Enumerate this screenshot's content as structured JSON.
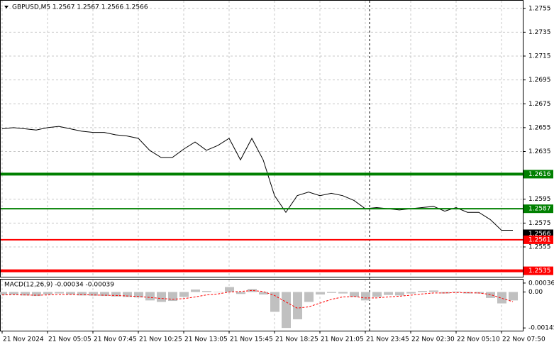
{
  "chart_data": [
    {
      "type": "line",
      "title": "GBPUSD,M5  1.2567 1.2567 1.2566 1.2566",
      "categories": [
        "21 Nov 2024",
        null,
        null,
        null,
        "21 Nov 05:05",
        null,
        null,
        null,
        "21 Nov 07:45",
        null,
        null,
        null,
        "21 Nov 10:25",
        null,
        null,
        null,
        "21 Nov 13:05",
        null,
        null,
        null,
        "21 Nov 15:45",
        null,
        null,
        null,
        "21 Nov 18:25",
        null,
        null,
        null,
        "21 Nov 21:05",
        null,
        null,
        null,
        "21 Nov 23:45",
        null,
        null,
        null,
        "22 Nov 02:30",
        null,
        null,
        null,
        "22 Nov 05:10",
        null,
        null,
        null,
        "22 Nov 07:50",
        null
      ],
      "values": [
        1.2654,
        1.2655,
        1.2654,
        1.2653,
        1.2655,
        1.2656,
        1.2654,
        1.2652,
        1.2651,
        1.2651,
        1.2649,
        1.2648,
        1.2646,
        1.2636,
        1.263,
        1.263,
        1.2637,
        1.2643,
        1.2636,
        1.264,
        1.2646,
        1.2628,
        1.2646,
        1.2628,
        1.2598,
        1.2584,
        1.2598,
        1.2601,
        1.2598,
        1.26,
        1.2598,
        1.2594,
        1.2587,
        1.2588,
        1.2587,
        1.2586,
        1.2587,
        1.2588,
        1.2589,
        1.2585,
        1.2588,
        1.2584,
        1.2584,
        1.2578,
        1.2569,
        1.2569
      ],
      "color": "#000000",
      "ylim": [
        1.253,
        1.2762
      ],
      "yticks": [
        1.2755,
        1.2735,
        1.2715,
        1.2695,
        1.2675,
        1.2655,
        1.2635,
        1.2595,
        1.2575,
        1.2555
      ],
      "grid": true,
      "levels": [
        {
          "value": 1.2616,
          "color": "#008000",
          "style": "thick"
        },
        {
          "value": 1.2587,
          "color": "#008000",
          "style": "thin"
        },
        {
          "value": 1.2566,
          "color": "#000000",
          "style": "current"
        },
        {
          "value": 1.2561,
          "color": "#ff0000",
          "style": "thin"
        },
        {
          "value": 1.2535,
          "color": "#ff0000",
          "style": "thick"
        }
      ]
    },
    {
      "type": "macd",
      "title": "MACD(12,26,9) -0.00034 -0.00039",
      "ylim": [
        -0.00156,
        0.0005
      ],
      "yticks": [
        0.00036,
        {
          "value": 0,
          "label": "0.00"
        },
        -0.00145
      ],
      "series": [
        {
          "color": "#c0c0c0",
          "values": [
            -0.00012,
            -0.0001,
            -0.00014,
            -0.00016,
            -0.0001,
            -6e-05,
            -0.0001,
            -0.00014,
            -0.00015,
            -0.00016,
            -0.00018,
            -0.0002,
            -0.00022,
            -0.00034,
            -0.0004,
            -0.00036,
            -0.0002,
            0.0001,
            4e-05,
            0,
            0.0002,
            -8e-05,
            0.00012,
            -0.0001,
            -0.0008,
            -0.00145,
            -0.0011,
            -0.0004,
            -0.0001,
            -4e-05,
            -6e-05,
            -0.0002,
            -0.00034,
            -0.0002,
            -0.00012,
            -0.00014,
            -6e-05,
            4e-05,
            6e-05,
            -6e-05,
            2e-05,
            -6e-05,
            -6e-05,
            -0.00024,
            -0.00046,
            -0.00034
          ]
        },
        {
          "color": "#ff0000",
          "values": [
            -0.00012,
            -0.00011,
            -0.00012,
            -0.00013,
            -0.00012,
            -0.0001,
            -0.0001,
            -0.00011,
            -0.00012,
            -0.00013,
            -0.00014,
            -0.00016,
            -0.00018,
            -0.00022,
            -0.00026,
            -0.00029,
            -0.00027,
            -0.0002,
            -0.00012,
            -8e-05,
            0,
            2e-05,
            6e-05,
            2e-05,
            -0.00014,
            -0.0004,
            -0.00065,
            -0.0006,
            -0.00045,
            -0.0003,
            -0.0002,
            -0.00018,
            -0.00024,
            -0.00024,
            -0.0002,
            -0.00017,
            -0.00013,
            -8e-05,
            -4e-05,
            -4e-05,
            -2e-05,
            -3e-05,
            -4e-05,
            -0.0001,
            -0.00025,
            -0.00039
          ]
        }
      ]
    }
  ]
}
